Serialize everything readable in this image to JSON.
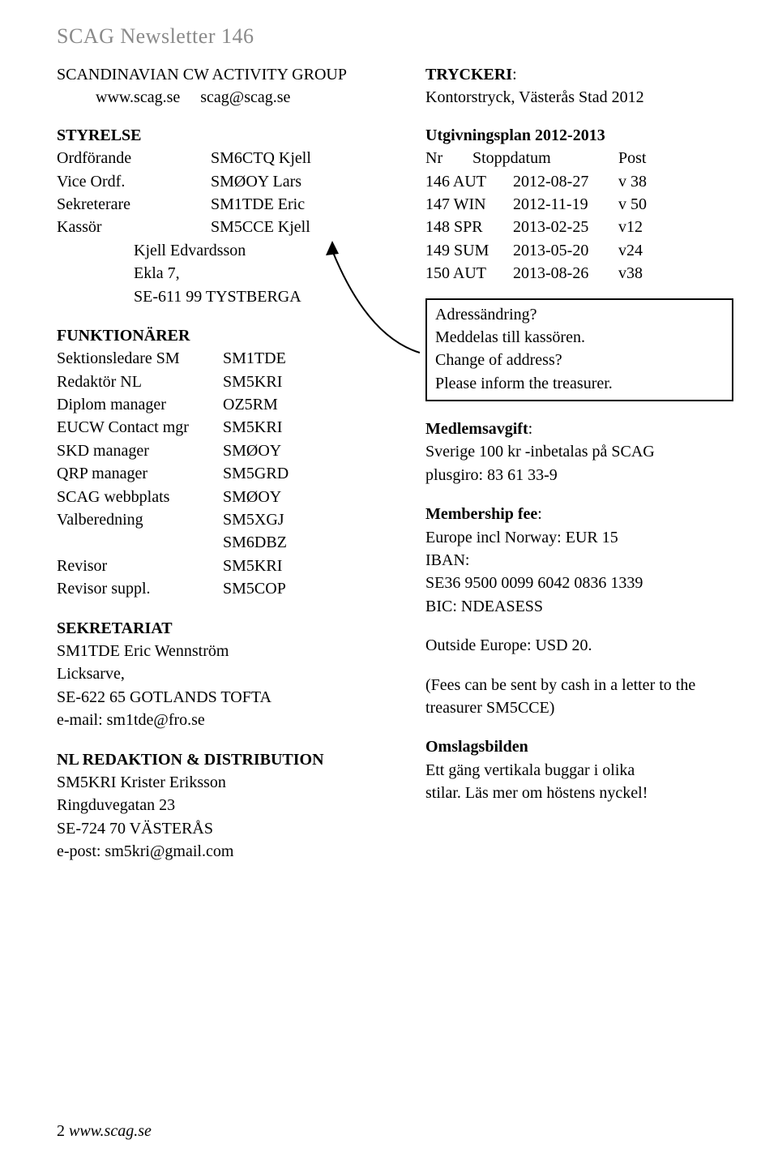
{
  "page_header": "SCAG Newsletter 146",
  "org_name": "SCANDINAVIAN CW ACTIVITY GROUP",
  "website": "www.scag.se",
  "email": "scag@scag.se",
  "styrelse": {
    "heading": "STYRELSE",
    "rows": [
      {
        "role": "Ordförande",
        "name": "SM6CTQ Kjell"
      },
      {
        "role": "Vice Ordf.",
        "name": "SMØOY Lars"
      },
      {
        "role": "Sekreterare",
        "name": "SM1TDE Eric"
      },
      {
        "role": "Kassör",
        "name": "SM5CCE Kjell"
      }
    ],
    "addr1": "Kjell Edvardsson",
    "addr2": "Ekla 7,",
    "addr3": "SE-611 99 TYSTBERGA"
  },
  "funktionarer": {
    "heading": "FUNKTIONÄRER",
    "rows": [
      {
        "role": "Sektionsledare SM",
        "name": "SM1TDE"
      },
      {
        "role": "Redaktör NL",
        "name": "SM5KRI"
      },
      {
        "role": "Diplom manager",
        "name": "OZ5RM"
      },
      {
        "role": "EUCW Contact mgr",
        "name": "SM5KRI"
      },
      {
        "role": "SKD manager",
        "name": "SMØOY"
      },
      {
        "role": "QRP manager",
        "name": "SM5GRD"
      },
      {
        "role": "SCAG webbplats",
        "name": "SMØOY"
      },
      {
        "role": "Valberedning",
        "name": "SM5XGJ"
      },
      {
        "role": "",
        "name": "SM6DBZ"
      },
      {
        "role": "Revisor",
        "name": "SM5KRI"
      },
      {
        "role": "Revisor suppl.",
        "name": "SM5COP"
      }
    ]
  },
  "sekretariat": {
    "heading": "SEKRETARIAT",
    "lines": [
      "SM1TDE Eric Wennström",
      "Licksarve,",
      "SE-622 65 GOTLANDS TOFTA",
      "e-mail: sm1tde@fro.se"
    ]
  },
  "redaktion": {
    "heading": "NL REDAKTION & DISTRIBUTION",
    "lines": [
      "SM5KRI Krister Eriksson",
      "Ringduvegatan 23",
      "SE-724 70 VÄSTERÅS",
      "e-post: sm5kri@gmail.com"
    ]
  },
  "tryckeri": {
    "heading": "TRYCKERI",
    "colon": ":",
    "text": "Kontorstryck, Västerås Stad 2012"
  },
  "schedule": {
    "heading": "Utgivningsplan 2012-2013",
    "header": {
      "nr": "Nr",
      "stopp": "Stoppdatum",
      "post": "Post"
    },
    "rows": [
      {
        "nr": "146 AUT",
        "stopp": "2012-08-27",
        "post": "v 38"
      },
      {
        "nr": "147 WIN",
        "stopp": "2012-11-19",
        "post": "v 50"
      },
      {
        "nr": "148 SPR",
        "stopp": "2013-02-25",
        "post": "v12"
      },
      {
        "nr": "149 SUM",
        "stopp": "2013-05-20",
        "post": "v24"
      },
      {
        "nr": "150 AUT",
        "stopp": "2013-08-26",
        "post": "v38"
      }
    ]
  },
  "addresschange": {
    "l1": "Adressändring?",
    "l2": "Meddelas till kassören.",
    "l3": "Change of address?",
    "l4": "Please inform the treasurer."
  },
  "avgift": {
    "heading": "Medlemsavgift",
    "colon": ":",
    "l1": "Sverige 100 kr -inbetalas på SCAG",
    "l2": "plusgiro: 83 61 33-9"
  },
  "memberfee": {
    "heading": "Membership fee",
    "colon": ":",
    "l1": "Europe incl Norway: EUR 15",
    "l2": "IBAN:",
    "l3": "SE36 9500 0099 6042 0836 1339",
    "l4": "BIC: NDEASESS"
  },
  "outside_eu": "Outside Europe: USD 20.",
  "fees_note": "(Fees can be sent by cash in a letter to the treasurer SM5CCE)",
  "omslag": {
    "heading": "Omslagsbilden",
    "l1": "Ett gäng vertikala buggar i olika",
    "l2": "stilar. Läs mer om höstens nyckel!"
  },
  "footer": {
    "num": "2",
    "site": "www.scag.se"
  },
  "colors": {
    "header_grey": "#8a8a8a",
    "text": "#000000",
    "background": "#ffffff",
    "box_border": "#000000"
  },
  "arrow": {
    "stroke": "#000000",
    "stroke_width": 2,
    "head_fill": "#000000"
  }
}
